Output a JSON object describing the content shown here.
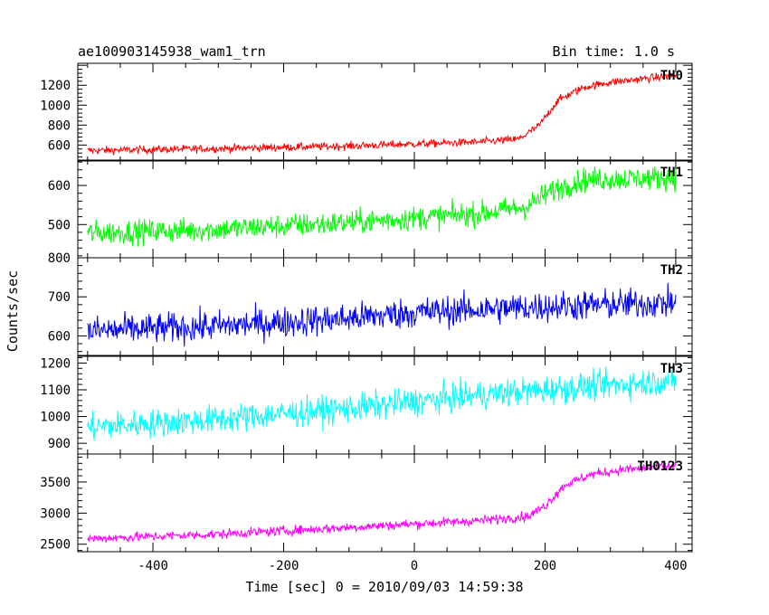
{
  "chart_data": {
    "type": "line",
    "title": "ae100903145938_wam1_trn",
    "subtitle": "Bin time: 1.0 s",
    "xlabel": "Time [sec] 0 = 2010/09/03 14:59:38",
    "ylabel": "Counts/sec",
    "xlim": [
      -515,
      425
    ],
    "x_ticks": [
      -400,
      -200,
      0,
      200,
      400
    ],
    "x_range": [
      -500,
      400
    ],
    "bin_time_s": 1.0,
    "panels": [
      {
        "name": "TH0",
        "color": "#ff0000",
        "ylim": [
          440,
          1420
        ],
        "y_ticks": [
          600,
          800,
          1000,
          1200
        ],
        "profile": [
          [
            -500,
            545
          ],
          [
            -300,
            565
          ],
          [
            -100,
            590
          ],
          [
            100,
            630
          ],
          [
            160,
            660
          ],
          [
            190,
            790
          ],
          [
            220,
            1050
          ],
          [
            260,
            1180
          ],
          [
            300,
            1230
          ],
          [
            400,
            1300
          ]
        ],
        "noise": 28
      },
      {
        "name": "TH1",
        "color": "#00ff00",
        "ylim": [
          415,
          665
        ],
        "y_ticks": [
          500,
          600
        ],
        "profile": [
          [
            -500,
            478
          ],
          [
            -300,
            488
          ],
          [
            -100,
            505
          ],
          [
            100,
            528
          ],
          [
            170,
            545
          ],
          [
            215,
            590
          ],
          [
            260,
            615
          ],
          [
            400,
            620
          ]
        ],
        "noise": 22
      },
      {
        "name": "TH2",
        "color": "#0000ff",
        "ylim": [
          550,
          800
        ],
        "y_ticks": [
          600,
          700,
          800
        ],
        "profile": [
          [
            -500,
            612
          ],
          [
            -300,
            625
          ],
          [
            -100,
            645
          ],
          [
            0,
            660
          ],
          [
            200,
            675
          ],
          [
            400,
            685
          ]
        ],
        "noise": 28
      },
      {
        "name": "TH3",
        "color": "#00ffff",
        "ylim": [
          860,
          1225
        ],
        "y_ticks": [
          900,
          1000,
          1100,
          1200
        ],
        "profile": [
          [
            -500,
            960
          ],
          [
            -300,
            990
          ],
          [
            -100,
            1030
          ],
          [
            100,
            1080
          ],
          [
            200,
            1100
          ],
          [
            400,
            1135
          ]
        ],
        "noise": 38
      },
      {
        "name": "TH0123",
        "color": "#ff00ff",
        "ylim": [
          2380,
          3950
        ],
        "y_ticks": [
          2500,
          3000,
          3500
        ],
        "profile": [
          [
            -500,
            2590
          ],
          [
            -300,
            2660
          ],
          [
            -100,
            2770
          ],
          [
            100,
            2880
          ],
          [
            175,
            2950
          ],
          [
            200,
            3120
          ],
          [
            230,
            3450
          ],
          [
            270,
            3620
          ],
          [
            320,
            3700
          ],
          [
            400,
            3760
          ]
        ],
        "noise": 55
      }
    ]
  }
}
